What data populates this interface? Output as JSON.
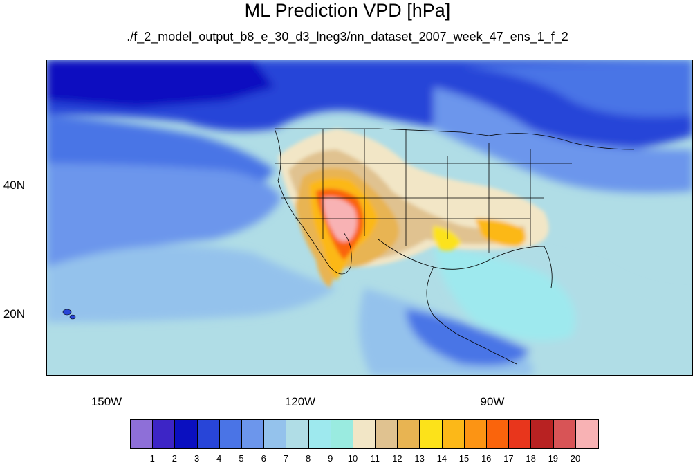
{
  "title": "ML Prediction VPD [hPa]",
  "subtitle": "./f_2_model_output_b8_e_30_d3_lneg3/nn_dataset_2007_week_47_ens_1_f_2",
  "lat_labels": [
    "40N",
    "20N"
  ],
  "lon_labels": [
    "150W",
    "120W",
    "90W"
  ],
  "colorbar": {
    "colors": [
      "#8e6fd8",
      "#3d25c6",
      "#0a0fc0",
      "#2845d8",
      "#4a74e6",
      "#6c96ec",
      "#94c2ec",
      "#b0dde6",
      "#9ee9ee",
      "#9aebe0",
      "#f2e6c6",
      "#e0c290",
      "#e8b452",
      "#fce21a",
      "#fcb818",
      "#fc9414",
      "#fa640c",
      "#e8361c",
      "#b82222",
      "#d85456",
      "#f8b2b4"
    ],
    "labels": [
      "1",
      "2",
      "3",
      "4",
      "5",
      "6",
      "7",
      "8",
      "9",
      "10",
      "11",
      "12",
      "13",
      "14",
      "15",
      "16",
      "17",
      "18",
      "19",
      "20"
    ]
  }
}
